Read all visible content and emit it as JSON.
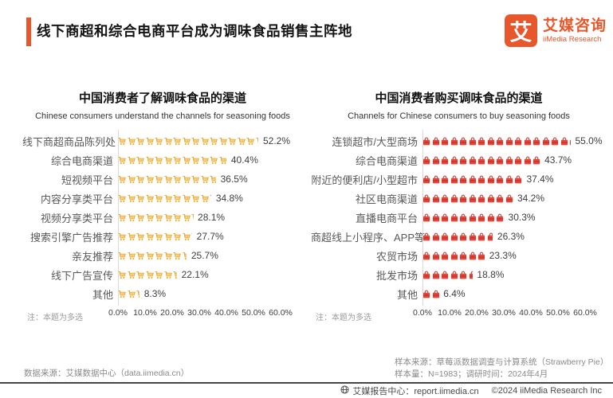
{
  "accent_color": "#E7572B",
  "header": {
    "title": "线下商超和综合电商平台成为调味食品销售主阵地",
    "logo_mark": "艾",
    "logo_cn": "艾媒咨询",
    "logo_en": "iiMedia Research"
  },
  "chart_data": [
    {
      "type": "bar",
      "orientation": "horizontal",
      "title": "中国消费者了解调味食品的渠道",
      "subtitle": "Chinese consumers understand the channels for seasoning foods",
      "icon": "gold-shopping-cart",
      "icon_color": "#F5BB45",
      "unit": "%",
      "categories": [
        "线下商超商品陈列处",
        "综合电商渠道",
        "短视频平台",
        "内容分享类平台",
        "视频分享类平台",
        "搜索引擎广告推荐",
        "亲友推荐",
        "线下广告宣传",
        "其他"
      ],
      "values": [
        52.2,
        40.4,
        36.5,
        34.8,
        28.1,
        27.7,
        25.7,
        22.1,
        8.3
      ],
      "xlim": [
        0,
        60
      ],
      "xtick_labels": [
        "0.0%",
        "10.0%",
        "20.0%",
        "30.0%",
        "40.0%",
        "50.0%",
        "60.0%"
      ],
      "grid": false,
      "legend": "none",
      "note": "注：本题为多选"
    },
    {
      "type": "bar",
      "orientation": "horizontal",
      "title": "中国消费者购买调味食品的渠道",
      "subtitle": "Channels for Chinese consumers to buy seasoning foods",
      "icon": "red-shopping-bag",
      "icon_color": "#E5463B",
      "unit": "%",
      "categories": [
        "连锁超市/大型商场",
        "综合电商渠道",
        "附近的便利店/小型超市",
        "社区电商渠道",
        "直播电商平台",
        "商超线上小程序、APP等",
        "农贸市场",
        "批发市场",
        "其他"
      ],
      "values": [
        55.0,
        43.7,
        37.4,
        34.2,
        30.3,
        26.3,
        23.3,
        18.8,
        6.4
      ],
      "xlim": [
        0,
        60
      ],
      "xtick_labels": [
        "0.0%",
        "10.0%",
        "20.0%",
        "30.0%",
        "40.0%",
        "50.0%",
        "60.0%"
      ],
      "grid": false,
      "legend": "none",
      "note": "注：本题为多选"
    }
  ],
  "footer": {
    "data_source": "数据来源：艾媒数据中心（data.iimedia.cn）",
    "sample_source": "样本来源：草莓派数据调查与计算系统（Strawberry Pie）",
    "sample_info": "样本量：N=1983；调研时间：2024年4月",
    "report_center": "艾媒报告中心：report.iimedia.cn",
    "copyright": "©2024   iiMedia Research Inc"
  }
}
